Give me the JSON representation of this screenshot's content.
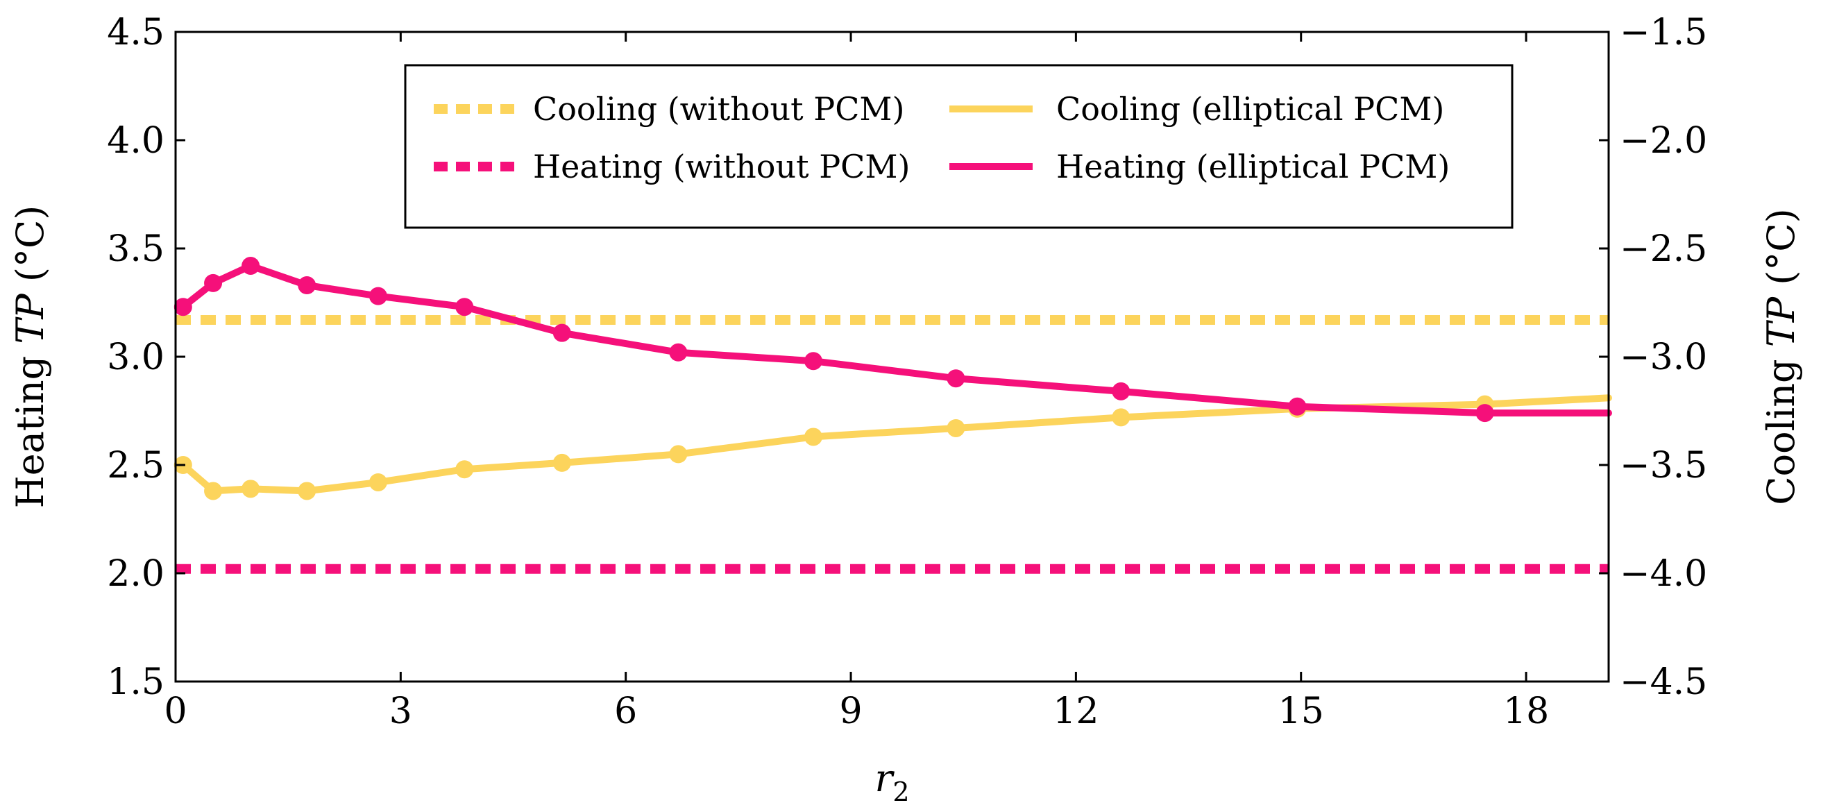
{
  "chart_data": {
    "type": "line",
    "xlabel": "r",
    "xlabel_sub": "2",
    "ylabel_left": {
      "pre": "Heating ",
      "italic": "TP",
      "post": " (°C)"
    },
    "ylabel_right": {
      "pre": "Cooling ",
      "italic": "TP",
      "post": " (°C)"
    },
    "xlim": [
      0,
      19.1
    ],
    "ylim_left": [
      1.5,
      4.5
    ],
    "ylim_right": [
      -4.5,
      -1.5
    ],
    "x_ticks": [
      0,
      3,
      6,
      9,
      12,
      15,
      18
    ],
    "x_tick_labels": [
      "0",
      "3",
      "6",
      "9",
      "12",
      "15",
      "18"
    ],
    "y_left_ticks": [
      1.5,
      2.0,
      2.5,
      3.0,
      3.5,
      4.0,
      4.5
    ],
    "y_left_tick_labels": [
      "1.5",
      "2.0",
      "2.5",
      "3.0",
      "3.5",
      "4.0",
      "4.5"
    ],
    "y_right_ticks": [
      -4.5,
      -4.0,
      -3.5,
      -3.0,
      -2.5,
      -2.0,
      -1.5
    ],
    "y_right_tick_labels": [
      "−4.5",
      "−4.0",
      "−3.5",
      "−3.0",
      "−2.5",
      "−2.0",
      "−1.5"
    ],
    "colors": {
      "cooling": "#FCD45C",
      "heating": "#F5107A"
    },
    "legend": {
      "position": "top-center",
      "entries": [
        {
          "label": "Cooling (without PCM)",
          "series": "cooling_without"
        },
        {
          "label": "Cooling (elliptical PCM)",
          "series": "cooling_elliptical"
        },
        {
          "label": "Heating (without PCM)",
          "series": "heating_without"
        },
        {
          "label": "Heating (elliptical PCM)",
          "series": "heating_elliptical"
        }
      ]
    },
    "series": [
      {
        "name": "Heating (elliptical PCM)",
        "key": "heating_elliptical",
        "axis": "left",
        "style": "solid",
        "markers": true,
        "x": [
          0.1,
          0.5,
          1.0,
          1.75,
          2.7,
          3.85,
          5.15,
          6.7,
          8.5,
          10.4,
          12.6,
          14.95,
          17.45,
          19.1
        ],
        "y": [
          3.23,
          3.34,
          3.42,
          3.33,
          3.28,
          3.23,
          3.11,
          3.02,
          2.98,
          2.9,
          2.84,
          2.77,
          2.74,
          2.74
        ],
        "marker_count": 13
      },
      {
        "name": "Cooling (elliptical PCM)",
        "key": "cooling_elliptical",
        "axis": "right",
        "style": "solid",
        "markers": true,
        "x": [
          0.1,
          0.5,
          1.0,
          1.75,
          2.7,
          3.85,
          5.15,
          6.7,
          8.5,
          10.4,
          12.6,
          14.95,
          17.45,
          19.1
        ],
        "y": [
          -3.5,
          -3.62,
          -3.61,
          -3.62,
          -3.58,
          -3.52,
          -3.49,
          -3.45,
          -3.37,
          -3.33,
          -3.28,
          -3.24,
          -3.22,
          -3.19
        ],
        "marker_count": 13
      },
      {
        "name": "Cooling (without PCM)",
        "key": "cooling_without",
        "axis": "right",
        "style": "dashed",
        "markers": false,
        "x": [
          0,
          19.1
        ],
        "y": [
          -2.83,
          -2.83
        ]
      },
      {
        "name": "Heating (without PCM)",
        "key": "heating_without",
        "axis": "left",
        "style": "dashed",
        "markers": false,
        "x": [
          0,
          19.1
        ],
        "y": [
          2.02,
          2.02
        ]
      }
    ]
  }
}
